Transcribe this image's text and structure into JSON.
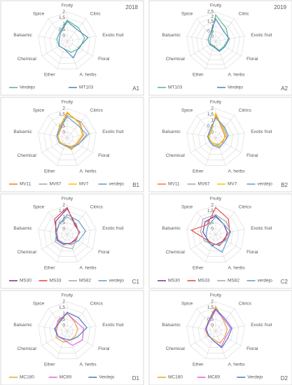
{
  "chart_data": [
    {
      "type": "radar",
      "title": "2018",
      "label": "A1",
      "categories": [
        "Fruity",
        "Citric",
        "Exotic fruit",
        "Floral",
        "A. herbs",
        "Ether",
        "Chemical",
        "Balsamic",
        "Spice"
      ],
      "rlim": [
        -0.5,
        2
      ],
      "rticks": [
        0,
        {
          "value": 0.5,
          "label": "0,5"
        },
        1,
        {
          "value": 1.5,
          "label": "1,5"
        },
        2
      ],
      "series": [
        {
          "name": "Verdejo",
          "color": "#4cb98a",
          "values": [
            1.3,
            1.0,
            1.0,
            0.7,
            0.5,
            0.2,
            0.3,
            0.4,
            0.5
          ]
        },
        {
          "name": "MT103",
          "color": "#4f81bd",
          "values": [
            1.2,
            0.8,
            1.3,
            0.6,
            1.0,
            0.2,
            0.3,
            0.2,
            0.4
          ]
        }
      ]
    },
    {
      "type": "radar",
      "title": "2019",
      "label": "A2",
      "categories": [
        "Fruity",
        "Citric",
        "Exotic fruit",
        "Floral",
        "A. herbs",
        "Ether",
        "Chemical",
        "Balsamic",
        "Spice"
      ],
      "rlim": [
        -0.5,
        2.5
      ],
      "rticks": [
        0,
        {
          "value": 0.5,
          "label": "0,5"
        },
        1,
        {
          "value": 1.5,
          "label": "1,5"
        },
        2,
        {
          "value": 2.5,
          "label": "2,5"
        }
      ],
      "series": [
        {
          "name": "MT103",
          "color": "#4cb98a",
          "values": [
            2.2,
            1.2,
            0.8,
            0.5,
            0.5,
            0,
            0.1,
            0.1,
            0.2
          ]
        },
        {
          "name": "Verdejo",
          "color": "#4f81bd",
          "values": [
            1.8,
            0.8,
            0.9,
            0.6,
            0.6,
            0.1,
            0.2,
            0.3,
            0.4
          ]
        }
      ]
    },
    {
      "type": "radar",
      "label": "B1",
      "categories": [
        "Fruity",
        "Citrics",
        "Exotic fruit",
        "Floral",
        "A. herbs",
        "Ether",
        "Chemical",
        "Balsamic",
        "Spice"
      ],
      "rlim": [
        -0.5,
        2
      ],
      "rticks": [
        0,
        {
          "value": 0.5,
          "label": "0,5"
        },
        1,
        {
          "value": 1.5,
          "label": "1,5"
        },
        2
      ],
      "series": [
        {
          "name": "MV11",
          "color": "#ed7d31",
          "values": [
            1.6,
            1.2,
            0.9,
            0.5,
            0.3,
            0.1,
            0.2,
            0.3,
            0.4
          ]
        },
        {
          "name": "MV67",
          "color": "#a5a5a5",
          "values": [
            1.4,
            1.3,
            1.4,
            0.6,
            0.5,
            0.2,
            0.3,
            0.4,
            0.6
          ]
        },
        {
          "name": "MV7",
          "color": "#ffc000",
          "values": [
            1.7,
            1.1,
            0.8,
            0.4,
            0.6,
            0.1,
            0.2,
            0.3,
            0.6
          ]
        },
        {
          "name": "verdejo",
          "color": "#5b9bd5",
          "values": [
            1.3,
            0.9,
            1.2,
            0.6,
            0.4,
            0.2,
            0.3,
            0.4,
            0.5
          ]
        }
      ]
    },
    {
      "type": "radar",
      "label": "B2",
      "categories": [
        "Fruity",
        "Citrics",
        "Exotic fruit",
        "Floral",
        "A. herbs",
        "Ether",
        "Chemical",
        "Balsamic",
        "Spice"
      ],
      "rlim": [
        -0.5,
        2
      ],
      "rticks": [
        0,
        {
          "value": 0.5,
          "label": "0,5"
        },
        1,
        {
          "value": 1.5,
          "label": "1,5"
        },
        2
      ],
      "series": [
        {
          "name": "MV11",
          "color": "#ed7d31",
          "values": [
            1.5,
            0.4,
            0.3,
            0.2,
            0.1,
            0,
            0,
            0.2,
            0.1
          ]
        },
        {
          "name": "MV67",
          "color": "#a5a5a5",
          "values": [
            1.3,
            0.6,
            0.5,
            0.3,
            0.3,
            0.1,
            0.1,
            0.2,
            0.2
          ]
        },
        {
          "name": "MV7",
          "color": "#ffc000",
          "values": [
            1.6,
            0.5,
            0.4,
            0.1,
            0.2,
            0,
            0,
            0.1,
            0.1
          ]
        },
        {
          "name": "verdejo",
          "color": "#5b9bd5",
          "values": [
            1.2,
            0.7,
            0.6,
            0.3,
            0.4,
            0.2,
            0.1,
            0.2,
            0.3
          ]
        }
      ]
    },
    {
      "type": "radar",
      "label": "C1",
      "categories": [
        "Fruity",
        "Citrics",
        "Exotic fruit",
        "Floral",
        "A. herbs",
        "Ether",
        "Chemical",
        "Balsamic",
        "Spice"
      ],
      "rlim": [
        -0.5,
        2
      ],
      "rticks": [
        0,
        {
          "value": 0.5,
          "label": "0,5"
        },
        1,
        {
          "value": 1.5,
          "label": "1,5"
        },
        2
      ],
      "series": [
        {
          "name": "MS30",
          "color": "#7030a0",
          "values": [
            1.7,
            0.6,
            0.5,
            0.4,
            0.3,
            0.4,
            0.5,
            0.5,
            1.0
          ]
        },
        {
          "name": "MS33",
          "color": "#e84040",
          "values": [
            1.8,
            0.5,
            0.6,
            0.3,
            0.3,
            0.3,
            0.4,
            0.4,
            1.2
          ]
        },
        {
          "name": "MS82",
          "color": "#a5a5a5",
          "values": [
            1.0,
            0.7,
            0.5,
            0.4,
            0.8,
            0.6,
            0.7,
            0.4,
            0.6
          ]
        },
        {
          "name": "verdejo",
          "color": "#5b9bd5",
          "values": [
            1.2,
            1.0,
            1.1,
            0.6,
            0.4,
            0.3,
            0.4,
            0.5,
            0.6
          ]
        }
      ]
    },
    {
      "type": "radar",
      "label": "C2",
      "categories": [
        "Fruity",
        "Citrics",
        "Exotic fruit",
        "Floral",
        "A. herbs",
        "Ether",
        "Chemical",
        "Balsamic",
        "Spice"
      ],
      "rlim": [
        -0.5,
        2
      ],
      "rticks": [
        0,
        {
          "value": 0.5,
          "label": "0,5"
        },
        1,
        {
          "value": 1.5,
          "label": "1,5"
        },
        2
      ],
      "series": [
        {
          "name": "MS30",
          "color": "#7030a0",
          "values": [
            1.1,
            0.6,
            0.5,
            0.4,
            0.3,
            0.5,
            0.3,
            0.6,
            0.9
          ]
        },
        {
          "name": "MS33",
          "color": "#e84040",
          "values": [
            1.8,
            1.2,
            0.7,
            0.3,
            0.5,
            0.3,
            0.4,
            1.6,
            0.6
          ]
        },
        {
          "name": "MS82",
          "color": "#a5a5a5",
          "values": [
            1.2,
            0.9,
            0.8,
            0.5,
            0.4,
            0.4,
            0.6,
            0.8,
            1.2
          ]
        },
        {
          "name": "verdejo",
          "color": "#5b9bd5",
          "values": [
            1.0,
            0.6,
            0.8,
            0.6,
            1.1,
            0.5,
            0.4,
            0.3,
            0.5
          ]
        }
      ]
    },
    {
      "type": "radar",
      "label": "D1",
      "categories": [
        "Fruity",
        "Citrics",
        "Exotic fruit",
        "Floral",
        "A. herbs",
        "Ether",
        "Chemical",
        "Balsamic",
        "Spice"
      ],
      "rlim": [
        -0.5,
        2
      ],
      "rticks": [
        0,
        {
          "value": 0.5,
          "label": "0,5"
        },
        1,
        {
          "value": 1.5,
          "label": "1,5"
        },
        2
      ],
      "series": [
        {
          "name": "MC180",
          "color": "#f0a030",
          "values": [
            1.0,
            0.5,
            0.4,
            0.3,
            0.3,
            0.5,
            0.6,
            0.4,
            0.6
          ]
        },
        {
          "name": "MC69",
          "color": "#e060e0",
          "values": [
            1.0,
            0.6,
            0.9,
            1.0,
            0.8,
            0.3,
            0.4,
            0.5,
            0.7
          ]
        },
        {
          "name": "Verdejo",
          "color": "#4472c4",
          "values": [
            1.1,
            1.0,
            1.2,
            0.5,
            0.3,
            0.2,
            0.4,
            0.6,
            0.5
          ]
        }
      ]
    },
    {
      "type": "radar",
      "label": "D2",
      "categories": [
        "Fruity",
        "Citrics",
        "Exotic fruit",
        "Floral",
        "A. herbs",
        "Ether",
        "Chemical",
        "Balsamic",
        "Spice"
      ],
      "rlim": [
        -0.5,
        2
      ],
      "rticks": [
        0,
        {
          "value": 0.5,
          "label": "0,5"
        },
        1,
        {
          "value": 1.5,
          "label": "1,5"
        },
        2
      ],
      "series": [
        {
          "name": "MC180",
          "color": "#f0a030",
          "values": [
            1.6,
            0.6,
            0.5,
            0.4,
            0.6,
            0.2,
            0.3,
            0.4,
            0.5
          ]
        },
        {
          "name": "MC69",
          "color": "#e060e0",
          "values": [
            1.3,
            0.7,
            0.8,
            0.5,
            0.9,
            0.3,
            0.2,
            0.4,
            0.4
          ]
        },
        {
          "name": "Verdejo",
          "color": "#4472c4",
          "values": [
            1.4,
            0.8,
            0.9,
            0.7,
            1.0,
            0.3,
            0.2,
            0.3,
            0.5
          ]
        }
      ]
    }
  ]
}
